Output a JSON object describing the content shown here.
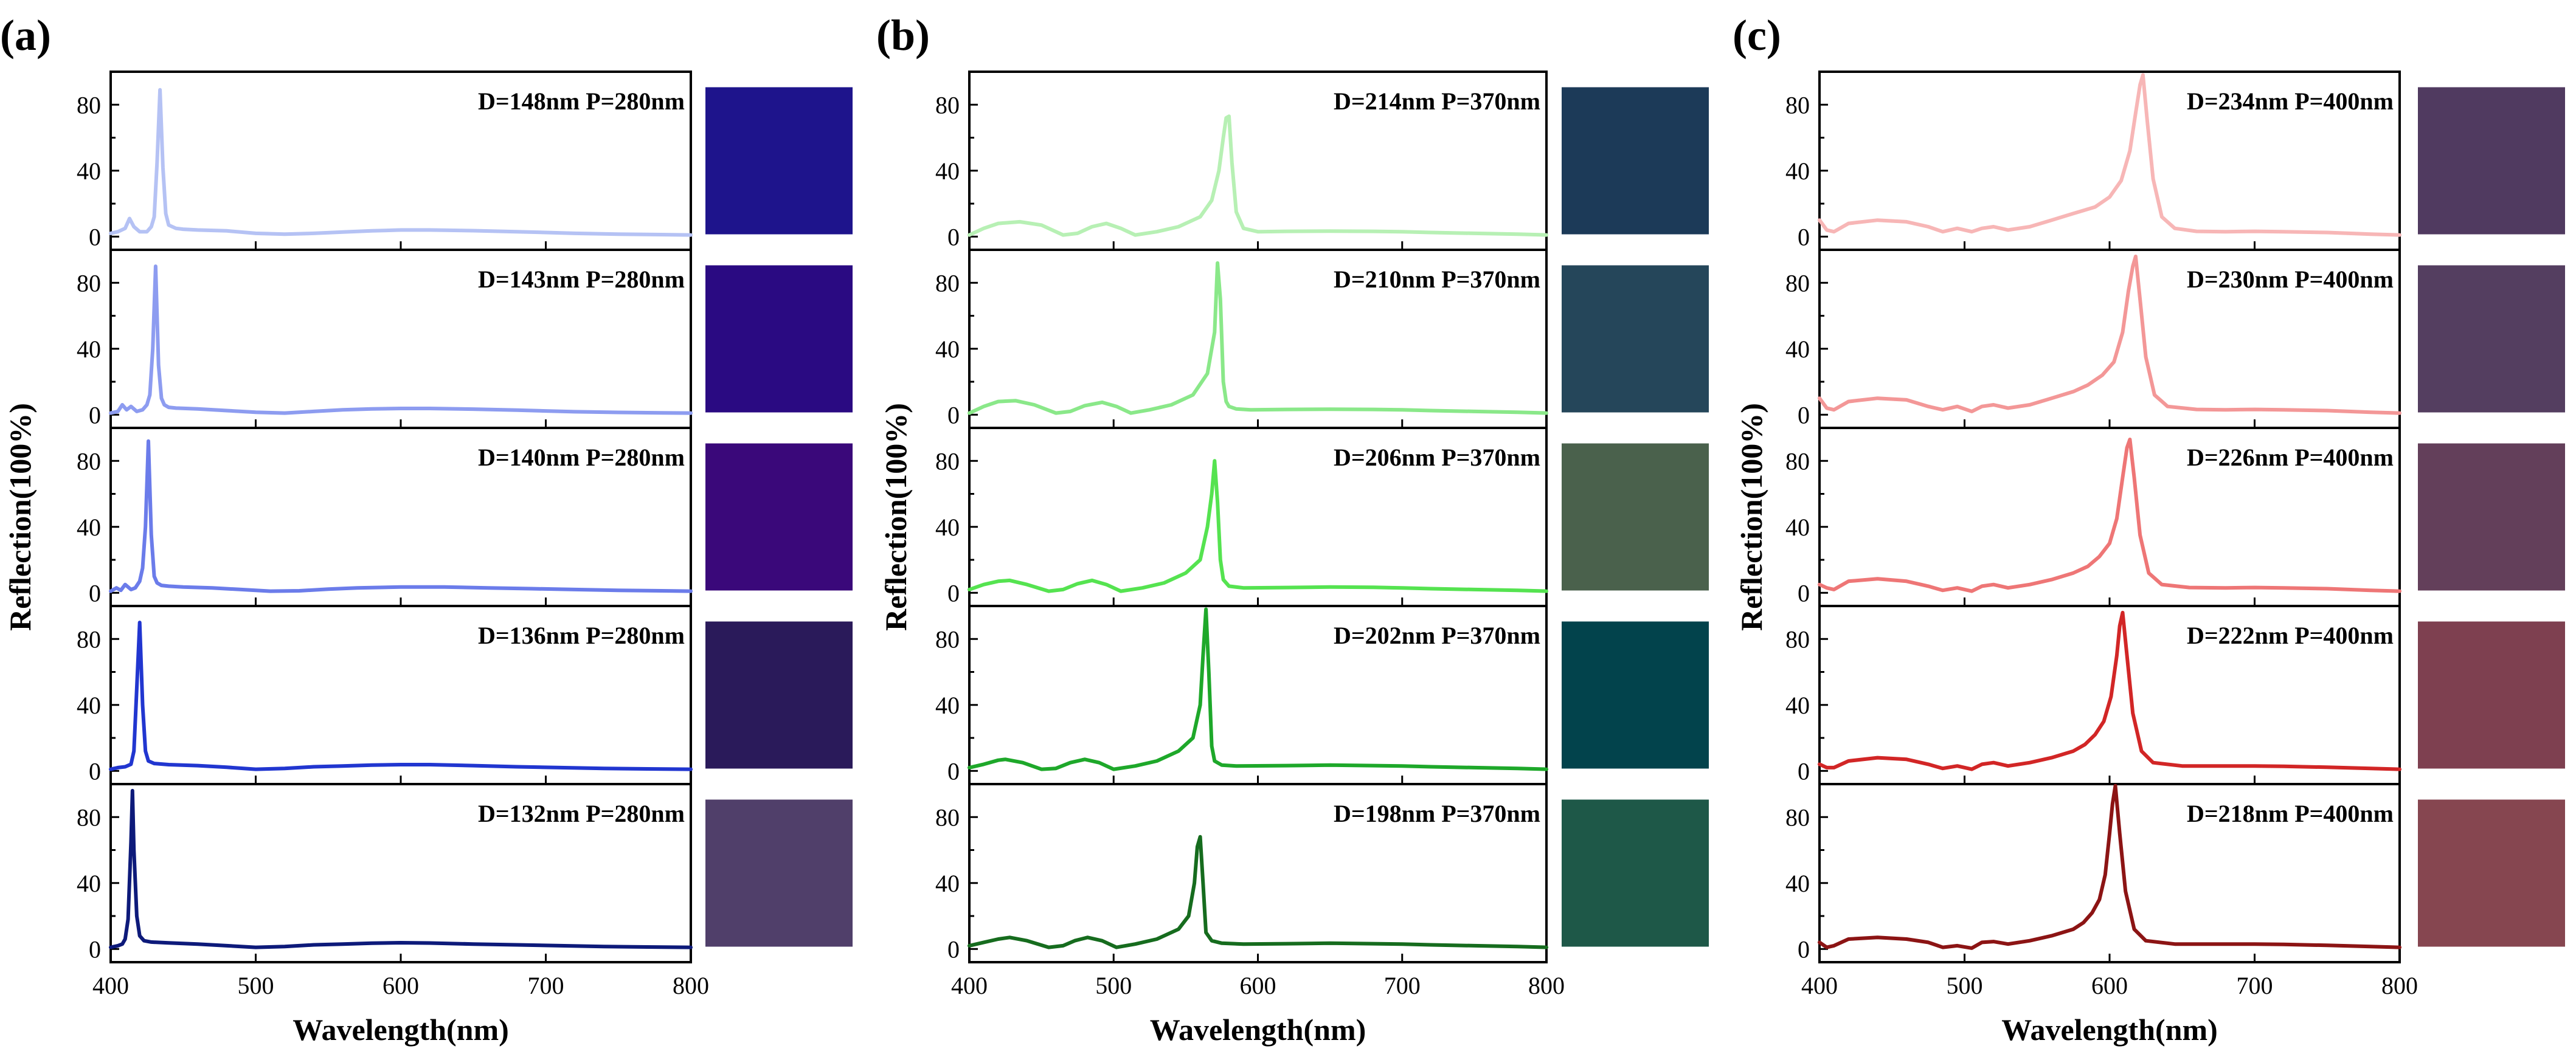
{
  "chart_data": [
    {
      "type": "line",
      "panel": "(a)",
      "xlabel": "Wavelength(nm)",
      "ylabel": "Reflection(100%)",
      "xlim": [
        400,
        800
      ],
      "ylim": [
        -8,
        100
      ],
      "xticks": [
        "400",
        "500",
        "600",
        "700",
        "800"
      ],
      "yticks": [
        "0",
        "40",
        "80"
      ],
      "series": [
        {
          "name": "D=148nm P=280nm",
          "color": "#b5c2f4",
          "swatch": "#1e148c",
          "x": [
            400,
            405,
            410,
            413,
            416,
            420,
            425,
            428,
            430,
            432,
            434,
            436,
            438,
            440,
            445,
            450,
            460,
            480,
            500,
            520,
            540,
            560,
            580,
            600,
            620,
            650,
            680,
            700,
            720,
            750,
            780,
            800
          ],
          "y": [
            2,
            3,
            5,
            11,
            6,
            3,
            3,
            6,
            12,
            45,
            89,
            42,
            14,
            7,
            5,
            4.5,
            4,
            3.5,
            2,
            1.5,
            2,
            2.8,
            3.5,
            4,
            4,
            3.6,
            3,
            2.5,
            2,
            1.5,
            1.2,
            1
          ]
        },
        {
          "name": "D=143nm P=280nm",
          "color": "#8d9cf0",
          "swatch": "#2a0a82",
          "x": [
            400,
            405,
            408,
            411,
            414,
            418,
            422,
            425,
            427,
            429,
            431,
            433,
            435,
            437,
            440,
            445,
            460,
            480,
            500,
            520,
            540,
            560,
            580,
            600,
            620,
            650,
            680,
            700,
            720,
            750,
            780,
            800
          ],
          "y": [
            1,
            2,
            6,
            3,
            5,
            2,
            3,
            6,
            12,
            40,
            90,
            30,
            10,
            6,
            4.5,
            4,
            3.5,
            2.5,
            1.5,
            1,
            2,
            3,
            3.5,
            3.8,
            3.8,
            3.4,
            2.8,
            2.3,
            1.8,
            1.4,
            1.1,
            1
          ]
        },
        {
          "name": "D=140nm P=280nm",
          "color": "#6b7cea",
          "swatch": "#3a087a",
          "x": [
            400,
            404,
            407,
            410,
            414,
            417,
            420,
            422,
            424,
            426,
            428,
            430,
            432,
            435,
            440,
            450,
            470,
            490,
            510,
            530,
            550,
            570,
            600,
            630,
            660,
            690,
            720,
            750,
            780,
            800
          ],
          "y": [
            1,
            3,
            1.5,
            5,
            2,
            3,
            7,
            15,
            40,
            92,
            35,
            10,
            6,
            4.5,
            4,
            3.5,
            3,
            2,
            1,
            1.2,
            2.2,
            3,
            3.5,
            3.5,
            3,
            2.5,
            2,
            1.5,
            1.2,
            1
          ]
        },
        {
          "name": "D=136nm P=280nm",
          "color": "#2136d0",
          "swatch": "#2a1a5a",
          "x": [
            400,
            405,
            410,
            414,
            416,
            418,
            420,
            422,
            424,
            426,
            430,
            440,
            460,
            480,
            500,
            520,
            540,
            560,
            580,
            600,
            620,
            650,
            680,
            710,
            740,
            770,
            800
          ],
          "y": [
            1,
            2,
            2.5,
            4,
            12,
            50,
            90,
            40,
            12,
            6,
            4.5,
            3.8,
            3.2,
            2.2,
            1,
            1.5,
            2.5,
            3,
            3.5,
            3.8,
            3.8,
            3.2,
            2.5,
            2,
            1.5,
            1.2,
            1
          ]
        },
        {
          "name": "D=132nm P=280nm",
          "color": "#0d1a7a",
          "swatch": "#503f6a",
          "x": [
            400,
            405,
            408,
            410,
            412,
            414,
            415,
            416,
            418,
            420,
            423,
            428,
            440,
            460,
            480,
            500,
            520,
            540,
            560,
            580,
            600,
            620,
            650,
            680,
            710,
            740,
            770,
            800
          ],
          "y": [
            1,
            2,
            3,
            6,
            18,
            65,
            96,
            60,
            20,
            8,
            5,
            4.2,
            3.7,
            3,
            2,
            1,
            1.5,
            2.5,
            3,
            3.5,
            3.8,
            3.6,
            3,
            2.5,
            2,
            1.5,
            1.2,
            1
          ]
        }
      ]
    },
    {
      "type": "line",
      "panel": "(b)",
      "xlabel": "Wavelength(nm)",
      "ylabel": "Reflection(100%)",
      "xlim": [
        400,
        800
      ],
      "ylim": [
        -8,
        100
      ],
      "xticks": [
        "400",
        "500",
        "600",
        "700",
        "800"
      ],
      "yticks": [
        "0",
        "40",
        "80"
      ],
      "series": [
        {
          "name": "D=214nm P=370nm",
          "color": "#b7f0b4",
          "swatch": "#1c3a58",
          "x": [
            400,
            410,
            420,
            435,
            450,
            465,
            475,
            485,
            495,
            505,
            515,
            530,
            545,
            560,
            568,
            573,
            576,
            578,
            580,
            582,
            585,
            590,
            600,
            620,
            650,
            680,
            700,
            720,
            750,
            780,
            800
          ],
          "y": [
            1,
            5,
            8,
            9,
            7,
            1,
            2,
            6,
            8,
            5,
            1,
            3,
            6,
            12,
            22,
            40,
            60,
            72,
            73,
            45,
            15,
            5,
            3,
            3.2,
            3.3,
            3.2,
            3,
            2.5,
            2,
            1.5,
            1
          ]
        },
        {
          "name": "D=210nm P=370nm",
          "color": "#8ae889",
          "swatch": "#25465a",
          "x": [
            400,
            410,
            420,
            432,
            445,
            460,
            470,
            480,
            492,
            502,
            512,
            525,
            540,
            555,
            565,
            570,
            572,
            574,
            576,
            578,
            580,
            585,
            595,
            620,
            650,
            680,
            700,
            720,
            750,
            780,
            800
          ],
          "y": [
            1,
            5,
            8,
            8.5,
            6,
            1,
            2,
            5.5,
            7.5,
            5,
            1,
            3,
            6,
            12,
            25,
            50,
            92,
            70,
            20,
            8,
            5,
            3.5,
            3,
            3.2,
            3.3,
            3.2,
            3,
            2.5,
            2,
            1.5,
            1
          ]
        },
        {
          "name": "D=206nm P=370nm",
          "color": "#55e350",
          "swatch": "#4a614c",
          "x": [
            400,
            410,
            420,
            428,
            440,
            455,
            465,
            475,
            485,
            495,
            505,
            520,
            535,
            550,
            560,
            565,
            568,
            570,
            572,
            574,
            576,
            580,
            590,
            620,
            650,
            680,
            700,
            720,
            750,
            780,
            800
          ],
          "y": [
            2,
            5,
            7,
            7.5,
            5,
            1,
            2,
            5.5,
            7.5,
            5,
            1,
            3,
            6,
            12,
            20,
            40,
            60,
            80,
            55,
            20,
            8,
            4,
            3,
            3.2,
            3.5,
            3.3,
            3,
            2.5,
            2,
            1.5,
            1
          ]
        },
        {
          "name": "D=202nm P=370nm",
          "color": "#1ea82a",
          "swatch": "#02434c",
          "x": [
            400,
            410,
            420,
            425,
            437,
            450,
            460,
            470,
            480,
            490,
            500,
            515,
            530,
            545,
            555,
            560,
            562,
            564,
            566,
            568,
            570,
            575,
            585,
            620,
            650,
            680,
            700,
            720,
            750,
            780,
            800
          ],
          "y": [
            2,
            4,
            6.5,
            7,
            5,
            1,
            1.5,
            5,
            7,
            5,
            1,
            3,
            6,
            12,
            20,
            40,
            70,
            98,
            60,
            15,
            6,
            3.5,
            3,
            3.2,
            3.5,
            3.2,
            3,
            2.5,
            2,
            1.5,
            1
          ]
        },
        {
          "name": "D=198nm P=370nm",
          "color": "#166c1e",
          "swatch": "#1e5848",
          "x": [
            400,
            410,
            420,
            428,
            440,
            455,
            465,
            473,
            482,
            492,
            502,
            515,
            530,
            545,
            552,
            556,
            558,
            560,
            562,
            564,
            568,
            575,
            590,
            620,
            650,
            680,
            700,
            720,
            750,
            780,
            800
          ],
          "y": [
            2,
            4,
            6,
            7,
            5,
            1,
            2,
            5,
            7,
            5,
            1,
            3,
            6,
            12,
            20,
            40,
            62,
            68,
            40,
            10,
            5,
            3.5,
            3,
            3.2,
            3.5,
            3.2,
            3,
            2.5,
            2,
            1.5,
            1
          ]
        }
      ]
    },
    {
      "type": "line",
      "panel": "(c)",
      "xlabel": "Wavelength(nm)",
      "ylabel": "Reflection(100%)",
      "xlim": [
        400,
        800
      ],
      "ylim": [
        -8,
        100
      ],
      "xticks": [
        "400",
        "500",
        "600",
        "700",
        "800"
      ],
      "yticks": [
        "0",
        "40",
        "80"
      ],
      "series": [
        {
          "name": "D=234nm P=400nm",
          "color": "#f7b6b6",
          "swatch": "#503a60",
          "x": [
            400,
            405,
            410,
            420,
            440,
            460,
            475,
            485,
            495,
            505,
            512,
            520,
            530,
            545,
            560,
            575,
            590,
            600,
            608,
            614,
            618,
            621,
            623,
            626,
            630,
            636,
            645,
            660,
            680,
            700,
            720,
            750,
            780,
            800
          ],
          "y": [
            10,
            4,
            3,
            8,
            10,
            9,
            6,
            3,
            5,
            3,
            5,
            6,
            4,
            6,
            10,
            14,
            18,
            24,
            34,
            52,
            75,
            92,
            98,
            70,
            35,
            12,
            5,
            3.2,
            3,
            3.2,
            3,
            2.5,
            1.5,
            1
          ]
        },
        {
          "name": "D=230nm P=400nm",
          "color": "#f39797",
          "swatch": "#543e60",
          "x": [
            400,
            405,
            410,
            420,
            440,
            460,
            475,
            485,
            495,
            505,
            512,
            520,
            530,
            545,
            560,
            575,
            585,
            595,
            603,
            609,
            613,
            616,
            618,
            621,
            625,
            631,
            640,
            660,
            680,
            700,
            720,
            750,
            780,
            800
          ],
          "y": [
            10,
            4,
            3,
            8,
            10,
            9,
            5,
            3,
            5,
            2,
            5,
            6,
            4,
            6,
            10,
            14,
            18,
            24,
            32,
            50,
            75,
            90,
            96,
            70,
            35,
            12,
            5,
            3.2,
            3,
            3.2,
            3,
            2.5,
            1.5,
            1
          ]
        },
        {
          "name": "D=226nm P=400nm",
          "color": "#ee7676",
          "swatch": "#633f5a",
          "x": [
            400,
            405,
            410,
            420,
            440,
            460,
            475,
            485,
            495,
            505,
            512,
            520,
            530,
            545,
            560,
            575,
            585,
            593,
            600,
            605,
            609,
            612,
            614,
            617,
            621,
            627,
            636,
            655,
            680,
            700,
            720,
            750,
            780,
            800
          ],
          "y": [
            5,
            3,
            2,
            7,
            8.5,
            7,
            4,
            1.5,
            3,
            1,
            4,
            5,
            3,
            5,
            8,
            12,
            16,
            22,
            30,
            45,
            70,
            88,
            93,
            70,
            35,
            12,
            5,
            3.2,
            3,
            3.2,
            3,
            2.5,
            1.5,
            1
          ]
        },
        {
          "name": "D=222nm P=400nm",
          "color": "#d22626",
          "swatch": "#7e4050",
          "x": [
            400,
            405,
            410,
            420,
            440,
            460,
            475,
            485,
            495,
            505,
            512,
            520,
            530,
            545,
            560,
            575,
            583,
            590,
            596,
            601,
            605,
            607,
            609,
            612,
            616,
            622,
            630,
            650,
            680,
            700,
            720,
            750,
            780,
            800
          ],
          "y": [
            4,
            2,
            2,
            6,
            8,
            7,
            4,
            1.5,
            3,
            1,
            4,
            5,
            3,
            5,
            8,
            12,
            16,
            22,
            30,
            45,
            70,
            88,
            96,
            70,
            35,
            12,
            5,
            3,
            3,
            3,
            2.8,
            2.2,
            1.5,
            1
          ]
        },
        {
          "name": "D=218nm P=400nm",
          "color": "#8c1414",
          "swatch": "#864650",
          "x": [
            400,
            405,
            410,
            420,
            440,
            460,
            475,
            485,
            495,
            505,
            512,
            520,
            530,
            545,
            560,
            575,
            582,
            588,
            593,
            597,
            600,
            602,
            604,
            607,
            611,
            617,
            625,
            645,
            680,
            700,
            720,
            750,
            780,
            800
          ],
          "y": [
            4,
            1,
            2,
            6,
            7,
            6,
            4,
            1,
            2,
            0.5,
            4,
            4.5,
            3,
            5,
            8,
            12,
            16,
            22,
            30,
            45,
            70,
            88,
            99,
            70,
            35,
            12,
            5,
            3,
            3,
            3,
            2.8,
            2.2,
            1.5,
            1
          ]
        }
      ]
    }
  ]
}
